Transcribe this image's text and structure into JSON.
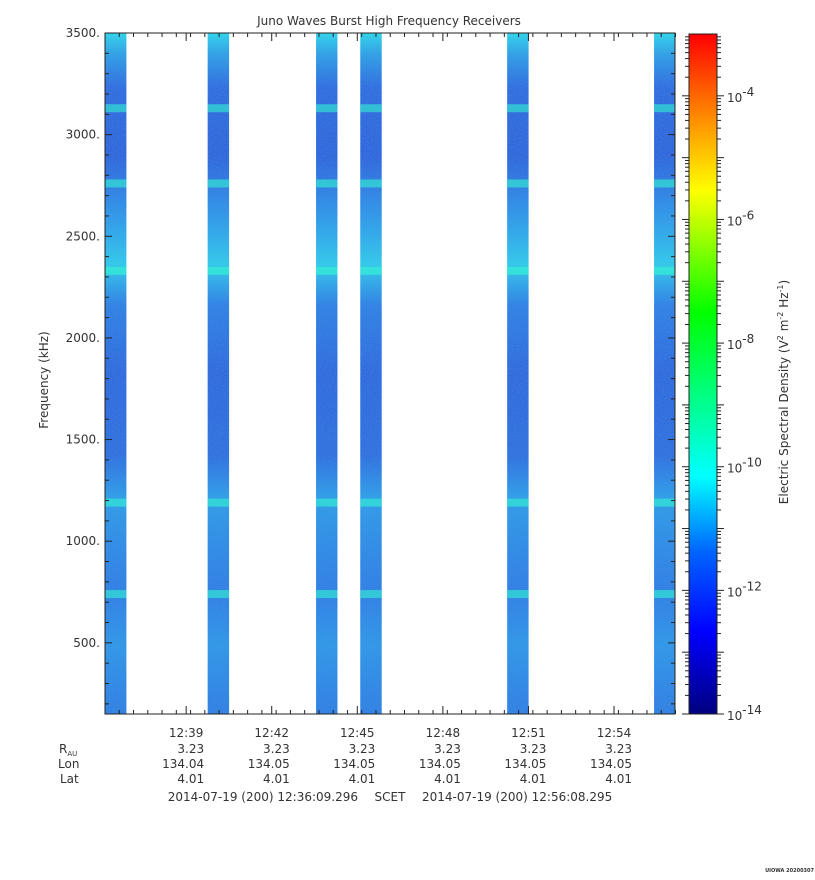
{
  "chart_data": {
    "type": "heatmap",
    "title": "Juno Waves Burst High Frequency Receivers",
    "ylabel": "Frequency (kHz)",
    "ylim": [
      150,
      3500
    ],
    "y_ticks": [
      {
        "value": 500,
        "label": "500."
      },
      {
        "value": 1000,
        "label": "1000."
      },
      {
        "value": 1500,
        "label": "1500."
      },
      {
        "value": 2000,
        "label": "2000."
      },
      {
        "value": 2500,
        "label": "2500."
      },
      {
        "value": 3000,
        "label": "3000."
      },
      {
        "value": 3500,
        "label": "3500."
      }
    ],
    "x_range": [
      "12:36:09.296",
      "12:56:08.295"
    ],
    "x_ticks": [
      "12:39",
      "12:42",
      "12:45",
      "12:48",
      "12:51",
      "12:54"
    ],
    "data_bursts_minutes_after_start": [
      [
        0,
        0.75
      ],
      [
        3.6,
        4.35
      ],
      [
        7.4,
        8.15
      ],
      [
        8.95,
        9.7
      ],
      [
        14.1,
        14.85
      ],
      [
        19.25,
        19.97
      ]
    ],
    "bright_bands_khz": [
      3130,
      2760,
      2330,
      1190,
      740
    ],
    "colorbar": {
      "label": "Electric Spectral Density (V²m⁻²Hz⁻¹)",
      "log_range": [
        -14,
        -3
      ],
      "tick_labels": [
        {
          "exp": -4,
          "label": "-4"
        },
        {
          "exp": -6,
          "label": "-6"
        },
        {
          "exp": -8,
          "label": "-8"
        },
        {
          "exp": -10,
          "label": "-10"
        },
        {
          "exp": -12,
          "label": "-12"
        },
        {
          "exp": -14,
          "label": "-14"
        }
      ]
    },
    "ephemeris": {
      "row_labels": {
        "r_main": "R",
        "r_sub": "AU",
        "lon": "Lon",
        "lat": "Lat"
      },
      "r_au": [
        "3.23",
        "3.23",
        "3.23",
        "3.23",
        "3.23",
        "3.23"
      ],
      "lon": [
        "134.04",
        "134.05",
        "134.05",
        "134.05",
        "134.05",
        "134.05"
      ],
      "lat": [
        "4.01",
        "4.01",
        "4.01",
        "4.01",
        "4.01",
        "4.01"
      ]
    },
    "time_range_text": {
      "start": "2014-07-19 (200) 12:36:09.296",
      "frame": "SCET",
      "end": "2014-07-19 (200) 12:56:08.295"
    },
    "footer_stamp": "UIOWA 20200307"
  }
}
